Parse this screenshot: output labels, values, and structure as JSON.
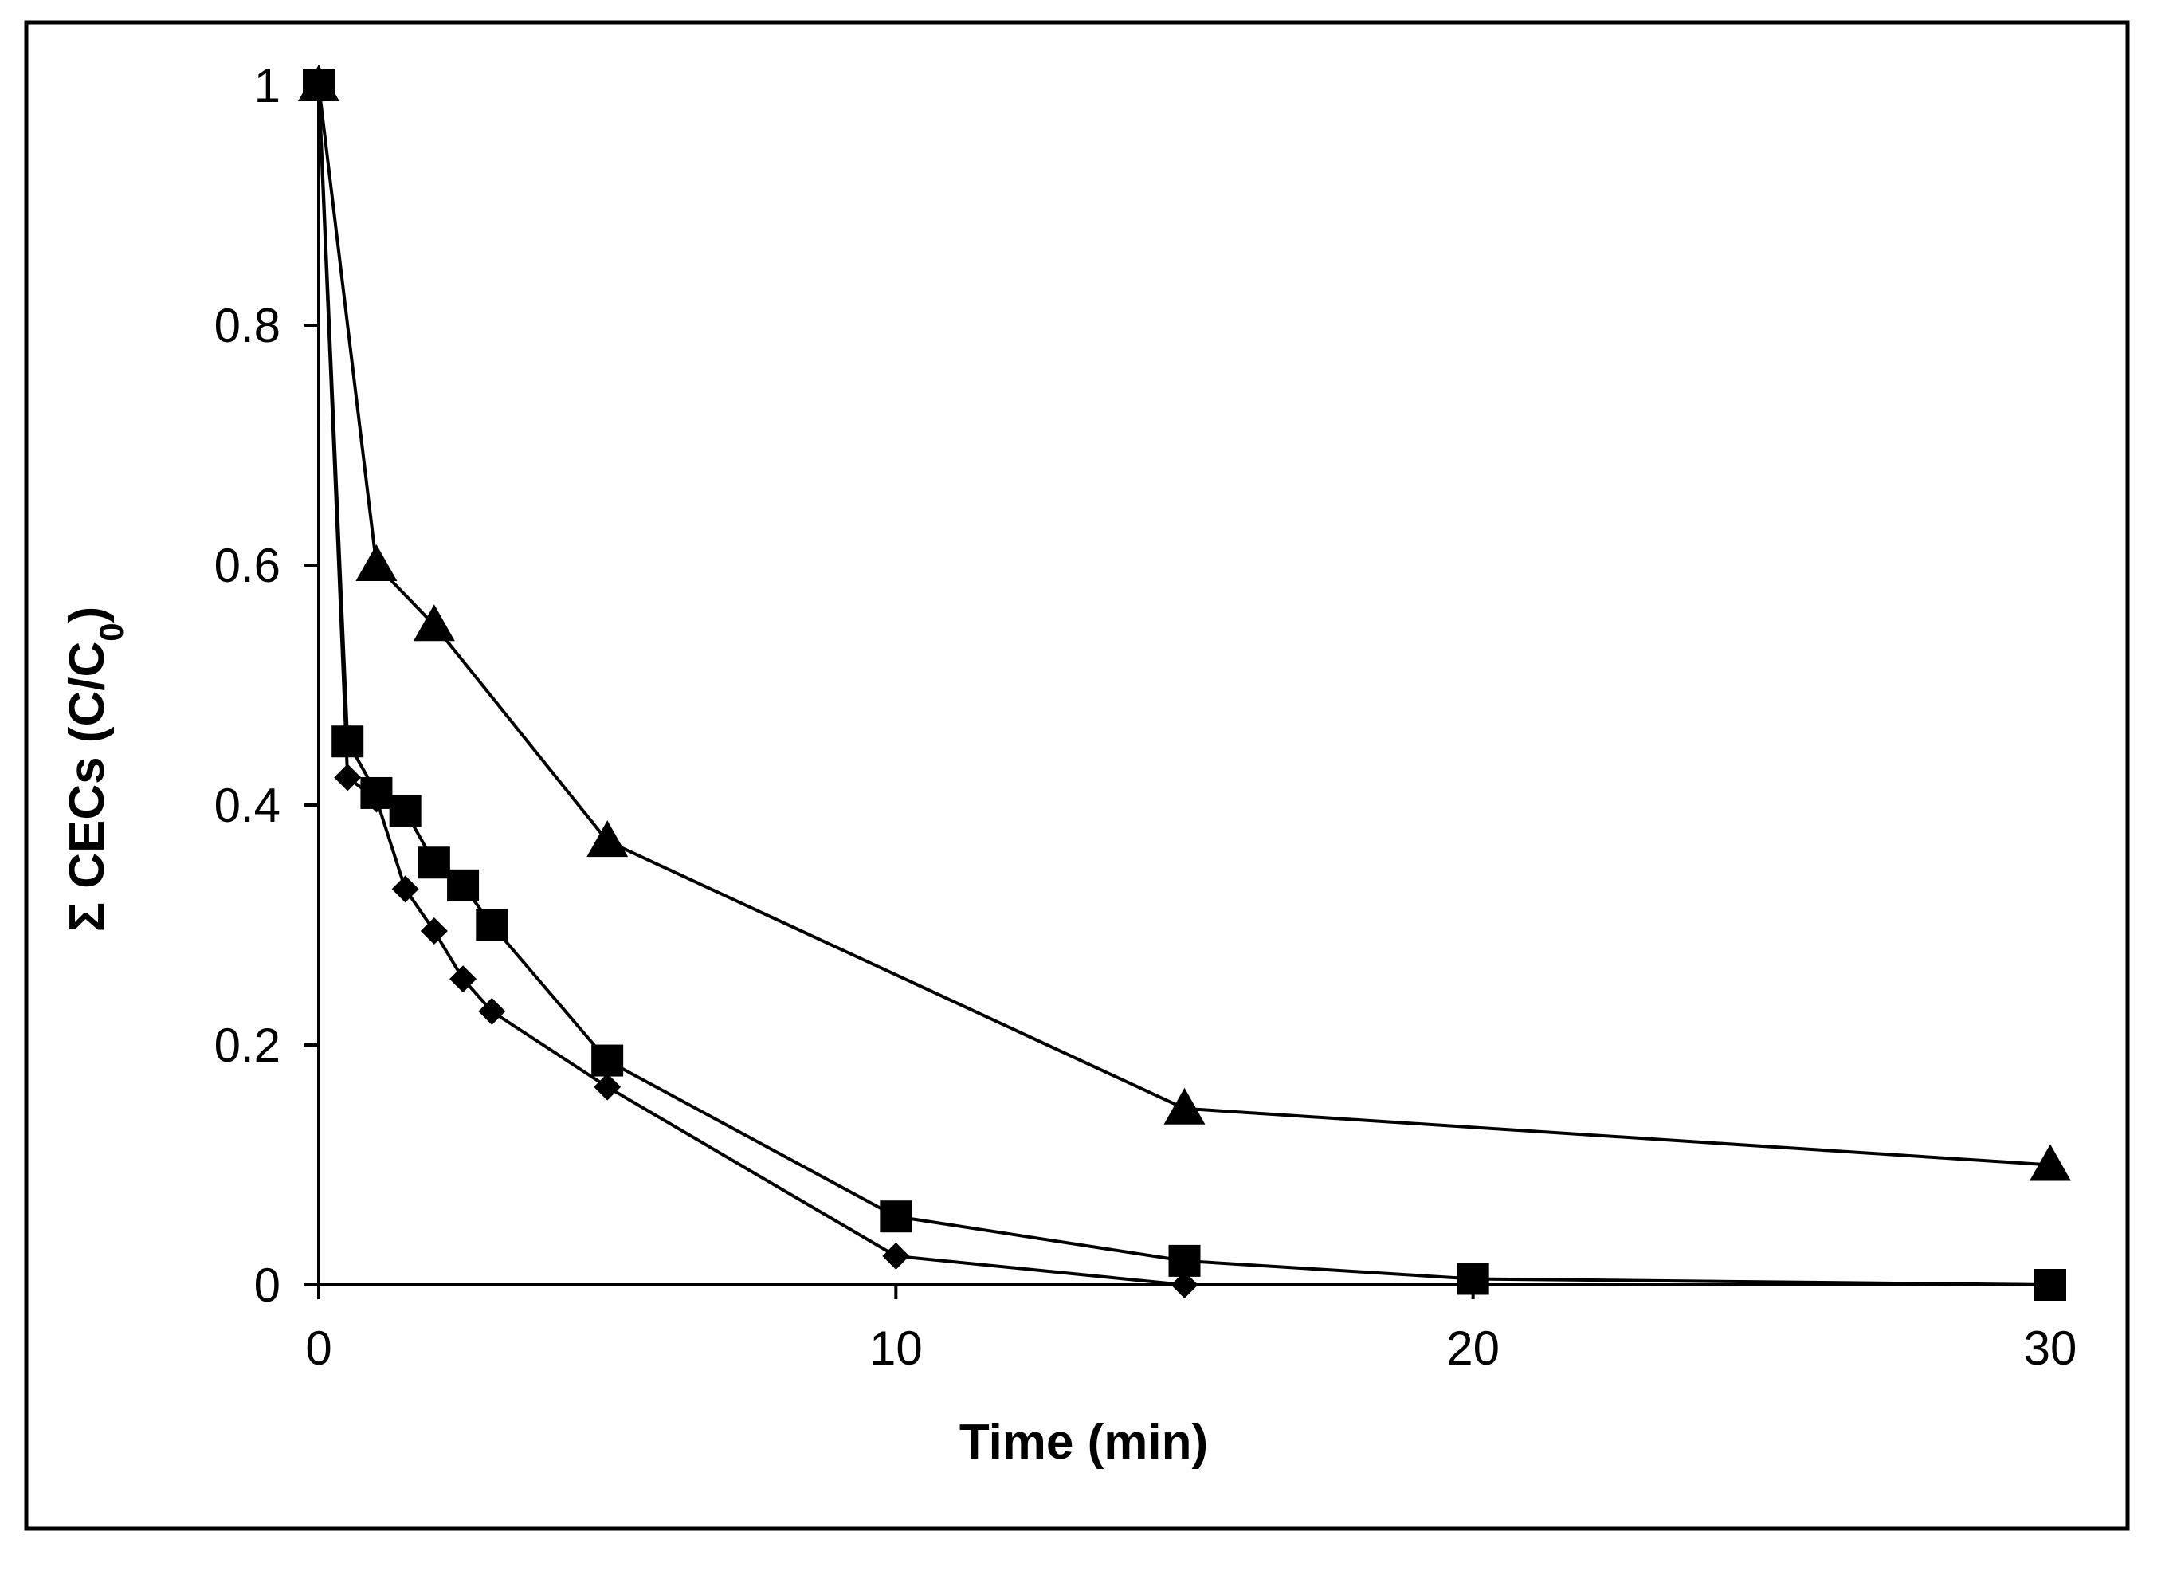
{
  "chart_data": {
    "type": "line",
    "title": "",
    "xlabel": "Time (min)",
    "ylabel": {
      "prefix": "Σ CECs (C/C",
      "subscript": "0",
      "suffix": ")"
    },
    "xlim": [
      0,
      30
    ],
    "ylim": [
      0,
      1
    ],
    "xticks": [
      "0",
      "10",
      "20",
      "30"
    ],
    "yticks": [
      "0",
      "0.2",
      "0.4",
      "0.6",
      "0.8",
      "1"
    ],
    "grid": false,
    "legend": "none",
    "colors": {
      "line": "#000000",
      "marker": "#000000",
      "frame": "#000000"
    },
    "series": [
      {
        "name": "triangle series",
        "marker": "triangle",
        "x": [
          0,
          1,
          2,
          5,
          15,
          30
        ],
        "y": [
          1.0,
          0.6,
          0.55,
          0.37,
          0.147,
          0.1
        ]
      },
      {
        "name": "square series",
        "marker": "square",
        "x": [
          0,
          0.5,
          1,
          1.5,
          2,
          2.5,
          3,
          5,
          10,
          15,
          20,
          30
        ],
        "y": [
          1.0,
          0.453,
          0.41,
          0.395,
          0.352,
          0.333,
          0.3,
          0.187,
          0.057,
          0.02,
          0.005,
          0.0
        ]
      },
      {
        "name": "diamond series",
        "marker": "diamond",
        "x": [
          0,
          0.5,
          1,
          1.5,
          2,
          2.5,
          3,
          5,
          10,
          15
        ],
        "y": [
          1.0,
          0.423,
          0.405,
          0.33,
          0.295,
          0.255,
          0.228,
          0.165,
          0.024,
          0.0
        ]
      }
    ]
  }
}
